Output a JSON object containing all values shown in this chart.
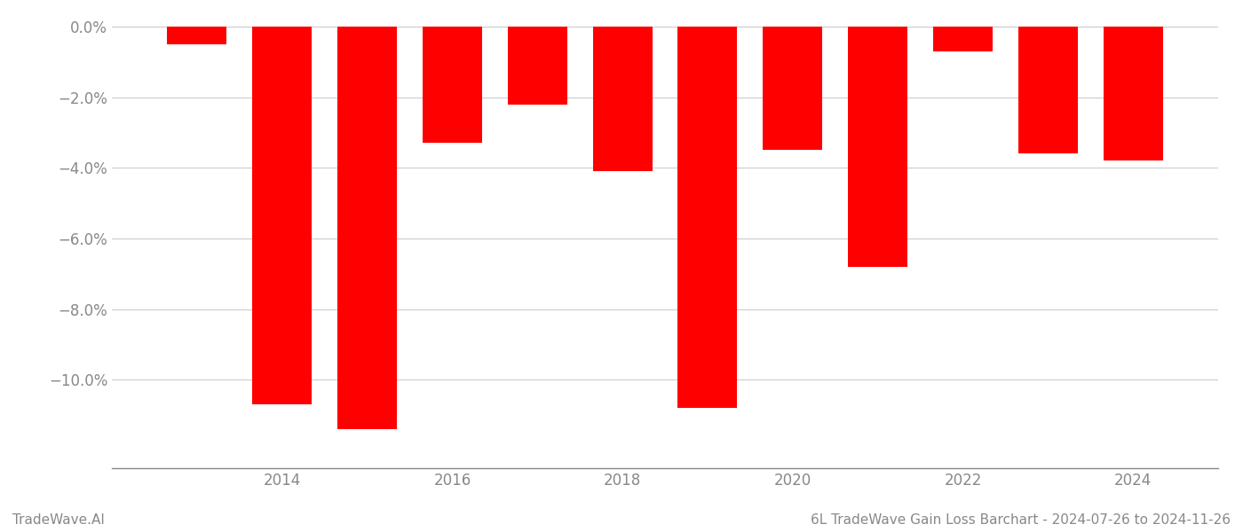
{
  "years": [
    2013,
    2014,
    2015,
    2016,
    2017,
    2018,
    2019,
    2020,
    2021,
    2022,
    2023,
    2024
  ],
  "values": [
    -0.005,
    -0.107,
    -0.114,
    -0.033,
    -0.022,
    -0.041,
    -0.108,
    -0.035,
    -0.068,
    -0.007,
    -0.036,
    -0.038
  ],
  "bar_color": "#ff0000",
  "background_color": "#ffffff",
  "ylim": [
    -0.125,
    0.003
  ],
  "yticks": [
    0.0,
    -0.02,
    -0.04,
    -0.06,
    -0.08,
    -0.1
  ],
  "tick_color": "#888888",
  "grid_color": "#cccccc",
  "tick_fontsize": 12,
  "footer_left": "TradeWave.AI",
  "footer_right": "6L TradeWave Gain Loss Barchart - 2024-07-26 to 2024-11-26",
  "footer_fontsize": 11,
  "bar_width": 0.7
}
